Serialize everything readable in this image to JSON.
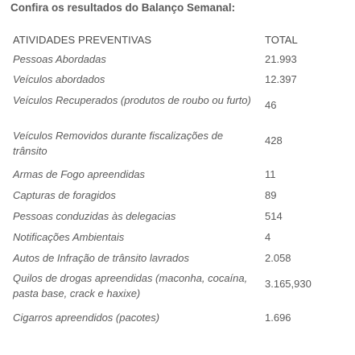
{
  "heading": "Confira os resultados do Balanço Semanal:",
  "table": {
    "header": {
      "activity": "ATIVIDADES PREVENTIVAS",
      "total": "TOTAL"
    },
    "rows": [
      {
        "label": "Pessoas Abordadas",
        "value": "21.993"
      },
      {
        "label": "Veículos abordados",
        "value": "12.397"
      },
      {
        "label": "Veículos Recuperados (produtos de roubo ou furto)",
        "value": "46"
      },
      {
        "label": "Veículos Removidos durante fiscalizações de trânsito",
        "value": "428"
      },
      {
        "label": "Armas de Fogo apreendidas",
        "value": "11"
      },
      {
        "label": "Capturas de foragidos",
        "value": "89"
      },
      {
        "label": "Pessoas conduzidas às delegacias",
        "value": "514"
      },
      {
        "label": "Notificações Ambientais",
        "value": "4"
      },
      {
        "label": "Autos de Infração de trânsito lavrados",
        "value": "2.058"
      },
      {
        "label": "Quilos de drogas apreendidas (maconha, cocaína, pasta base, crack e haxixe)",
        "value": "3.165,930"
      },
      {
        "label": "Cigarros apreendidos (pacotes)",
        "value": "1.696"
      }
    ]
  }
}
